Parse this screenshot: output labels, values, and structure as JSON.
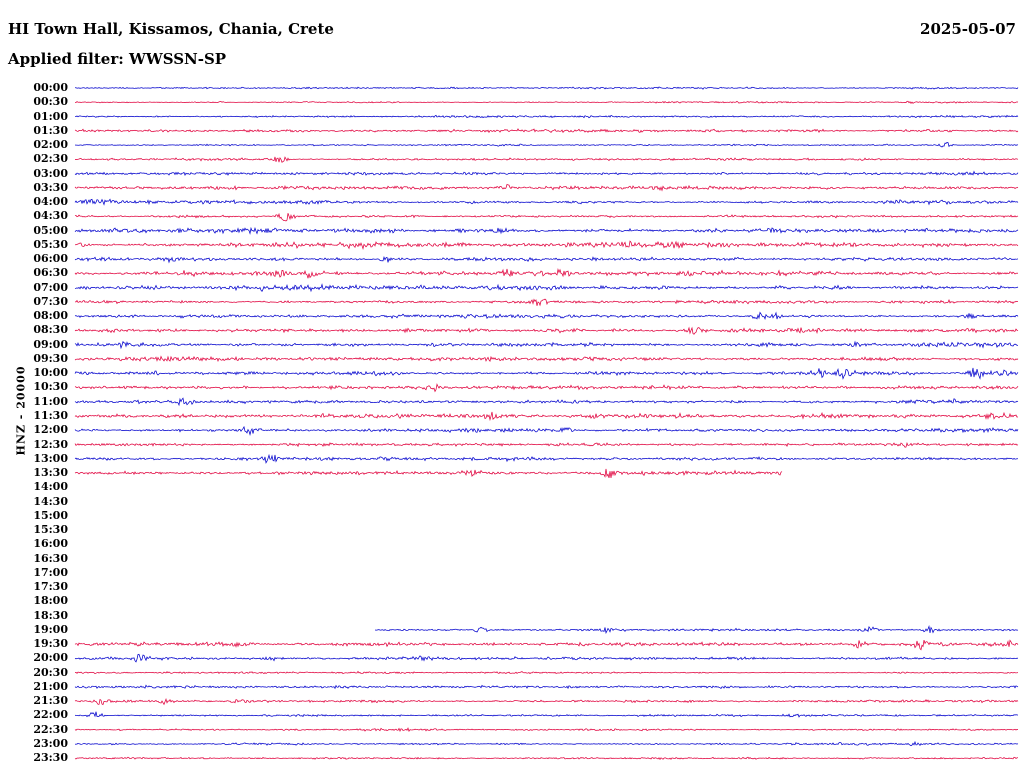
{
  "header": {
    "title": "HI Town Hall, Kissamos, Chania, Crete",
    "date": "2025-05-07",
    "filter_label": "Applied filter: WWSSN-SP"
  },
  "axis": {
    "ylabel": "HNZ - 20000"
  },
  "chart_data": {
    "type": "line",
    "title": "HI Town Hall, Kissamos, Chania, Crete",
    "subtitle": "Applied filter: WWSSN-SP",
    "date": "2025-05-07",
    "ylabel": "HNZ - 20000",
    "minutes_per_row": 30,
    "rows_per_hour": 2,
    "legend": "none",
    "grid": false,
    "colors": {
      "blue": "#0000cc",
      "red": "#e0003c"
    },
    "rows": [
      {
        "label": "00:00",
        "color": "blue",
        "amp": 0.7,
        "events": []
      },
      {
        "label": "00:30",
        "color": "red",
        "amp": 0.7,
        "events": [
          {
            "pos": 0.885,
            "amp": 2,
            "w": 5
          }
        ]
      },
      {
        "label": "01:00",
        "color": "blue",
        "amp": 0.9,
        "events": []
      },
      {
        "label": "01:30",
        "color": "red",
        "amp": 1.2,
        "events": []
      },
      {
        "label": "02:00",
        "color": "blue",
        "amp": 0.8,
        "events": [
          {
            "pos": 0.923,
            "amp": 3,
            "w": 6
          }
        ]
      },
      {
        "label": "02:30",
        "color": "red",
        "amp": 1.0,
        "events": [
          {
            "pos": 0.217,
            "amp": 4,
            "w": 8
          }
        ]
      },
      {
        "label": "03:00",
        "color": "blue",
        "amp": 1.4,
        "events": []
      },
      {
        "label": "03:30",
        "color": "red",
        "amp": 1.3,
        "events": [
          {
            "pos": 0.456,
            "amp": 6,
            "w": 6
          }
        ]
      },
      {
        "label": "04:00",
        "color": "blue",
        "amp": 1.4,
        "events": [
          {
            "pos": 0.016,
            "amp": 5,
            "w": 8
          },
          {
            "pos": 0.035,
            "amp": 4,
            "w": 6
          }
        ]
      },
      {
        "label": "04:30",
        "color": "red",
        "amp": 1.2,
        "events": [
          {
            "pos": 0.223,
            "amp": 4,
            "w": 8
          }
        ]
      },
      {
        "label": "05:00",
        "color": "blue",
        "amp": 2.0,
        "events": [
          {
            "pos": 0.45,
            "amp": 3,
            "w": 10
          },
          {
            "pos": 0.74,
            "amp": 3,
            "w": 8
          }
        ]
      },
      {
        "label": "05:30",
        "color": "red",
        "amp": 2.0,
        "events": [
          {
            "pos": 0.3,
            "amp": 2,
            "w": 10
          }
        ]
      },
      {
        "label": "06:00",
        "color": "blue",
        "amp": 1.4,
        "events": [
          {
            "pos": 0.1,
            "amp": 3,
            "w": 8
          },
          {
            "pos": 0.33,
            "amp": 3,
            "w": 8
          }
        ]
      },
      {
        "label": "06:30",
        "color": "red",
        "amp": 1.7,
        "events": [
          {
            "pos": 0.217,
            "amp": 4,
            "w": 8
          },
          {
            "pos": 0.25,
            "amp": 4,
            "w": 8
          },
          {
            "pos": 0.456,
            "amp": 4,
            "w": 8
          },
          {
            "pos": 0.515,
            "amp": 4,
            "w": 8
          },
          {
            "pos": 0.65,
            "amp": 3,
            "w": 8
          }
        ]
      },
      {
        "label": "07:00",
        "color": "blue",
        "amp": 2.1,
        "events": []
      },
      {
        "label": "07:30",
        "color": "red",
        "amp": 1.4,
        "events": [
          {
            "pos": 0.493,
            "amp": 4,
            "w": 8
          }
        ]
      },
      {
        "label": "08:00",
        "color": "blue",
        "amp": 1.5,
        "events": [
          {
            "pos": 0.726,
            "amp": 5,
            "w": 7
          },
          {
            "pos": 0.744,
            "amp": 4,
            "w": 6
          },
          {
            "pos": 0.95,
            "amp": 3,
            "w": 6
          }
        ]
      },
      {
        "label": "08:30",
        "color": "red",
        "amp": 1.7,
        "events": [
          {
            "pos": 0.657,
            "amp": 5,
            "w": 7
          }
        ]
      },
      {
        "label": "09:00",
        "color": "blue",
        "amp": 1.7,
        "events": [
          {
            "pos": 0.053,
            "amp": 3,
            "w": 7
          },
          {
            "pos": 0.73,
            "amp": 3,
            "w": 7
          },
          {
            "pos": 0.83,
            "amp": 3,
            "w": 7
          }
        ]
      },
      {
        "label": "09:30",
        "color": "red",
        "amp": 1.5,
        "events": []
      },
      {
        "label": "10:00",
        "color": "blue",
        "amp": 1.7,
        "events": [
          {
            "pos": 0.085,
            "amp": 3,
            "w": 7
          },
          {
            "pos": 0.79,
            "amp": 4,
            "w": 7
          },
          {
            "pos": 0.816,
            "amp": 5,
            "w": 7
          },
          {
            "pos": 0.954,
            "amp": 7,
            "w": 7
          },
          {
            "pos": 0.982,
            "amp": 4,
            "w": 6
          }
        ]
      },
      {
        "label": "10:30",
        "color": "red",
        "amp": 1.5,
        "events": [
          {
            "pos": 0.382,
            "amp": 4,
            "w": 8
          }
        ]
      },
      {
        "label": "11:00",
        "color": "blue",
        "amp": 1.5,
        "events": [
          {
            "pos": 0.117,
            "amp": 4,
            "w": 9
          },
          {
            "pos": 0.935,
            "amp": 3,
            "w": 7
          }
        ]
      },
      {
        "label": "11:30",
        "color": "red",
        "amp": 1.9,
        "events": [
          {
            "pos": 0.44,
            "amp": 4,
            "w": 8
          }
        ]
      },
      {
        "label": "12:00",
        "color": "blue",
        "amp": 1.5,
        "events": [
          {
            "pos": 0.186,
            "amp": 4,
            "w": 9
          },
          {
            "pos": 0.52,
            "amp": 3,
            "w": 8
          }
        ]
      },
      {
        "label": "12:30",
        "color": "red",
        "amp": 1.3,
        "events": [
          {
            "pos": 0.88,
            "amp": 3,
            "w": 7
          }
        ]
      },
      {
        "label": "13:00",
        "color": "blue",
        "amp": 1.3,
        "events": [
          {
            "pos": 0.207,
            "amp": 5,
            "w": 8
          },
          {
            "pos": 0.33,
            "amp": 3,
            "w": 8
          }
        ]
      },
      {
        "label": "13:30",
        "color": "red",
        "amp": 1.3,
        "end": 0.75,
        "events": [
          {
            "pos": 0.42,
            "amp": 4,
            "w": 9
          },
          {
            "pos": 0.567,
            "amp": 5,
            "w": 9
          }
        ]
      },
      {
        "label": "14:00",
        "present": false
      },
      {
        "label": "14:30",
        "present": false
      },
      {
        "label": "15:00",
        "present": false
      },
      {
        "label": "15:30",
        "present": false
      },
      {
        "label": "16:00",
        "present": false
      },
      {
        "label": "16:30",
        "present": false
      },
      {
        "label": "17:00",
        "present": false
      },
      {
        "label": "17:30",
        "present": false
      },
      {
        "label": "18:00",
        "present": false
      },
      {
        "label": "18:30",
        "present": false
      },
      {
        "label": "19:00",
        "color": "blue",
        "amp": 1.0,
        "start": 0.318,
        "events": [
          {
            "pos": 0.43,
            "amp": 3,
            "w": 7
          },
          {
            "pos": 0.567,
            "amp": 3,
            "w": 7
          },
          {
            "pos": 0.843,
            "amp": 3,
            "w": 7
          },
          {
            "pos": 0.907,
            "amp": 4,
            "w": 7
          }
        ]
      },
      {
        "label": "19:30",
        "color": "red",
        "amp": 1.5,
        "events": [
          {
            "pos": 0.292,
            "amp": 3,
            "w": 8
          },
          {
            "pos": 0.832,
            "amp": 4,
            "w": 7
          },
          {
            "pos": 0.896,
            "amp": 6,
            "w": 7
          },
          {
            "pos": 0.99,
            "amp": 4,
            "w": 6
          }
        ]
      },
      {
        "label": "20:00",
        "color": "blue",
        "amp": 1.1,
        "events": [
          {
            "pos": 0.069,
            "amp": 5,
            "w": 7
          },
          {
            "pos": 0.207,
            "amp": 3,
            "w": 7
          },
          {
            "pos": 0.371,
            "amp": 4,
            "w": 7
          }
        ]
      },
      {
        "label": "20:30",
        "color": "red",
        "amp": 0.9,
        "events": []
      },
      {
        "label": "21:00",
        "color": "blue",
        "amp": 1.1,
        "events": [
          {
            "pos": 0.52,
            "amp": 2,
            "w": 7
          }
        ]
      },
      {
        "label": "21:30",
        "color": "red",
        "amp": 1.1,
        "events": [
          {
            "pos": 0.027,
            "amp": 5,
            "w": 7
          },
          {
            "pos": 0.095,
            "amp": 3,
            "w": 7
          },
          {
            "pos": 0.175,
            "amp": 3,
            "w": 7
          }
        ]
      },
      {
        "label": "22:00",
        "color": "blue",
        "amp": 1.0,
        "events": [
          {
            "pos": 0.021,
            "amp": 4,
            "w": 7
          }
        ]
      },
      {
        "label": "22:30",
        "color": "red",
        "amp": 0.85,
        "events": []
      },
      {
        "label": "23:00",
        "color": "blue",
        "amp": 0.85,
        "events": [
          {
            "pos": 0.89,
            "amp": 3,
            "w": 6
          }
        ]
      },
      {
        "label": "23:30",
        "color": "red",
        "amp": 0.85,
        "events": []
      }
    ]
  }
}
